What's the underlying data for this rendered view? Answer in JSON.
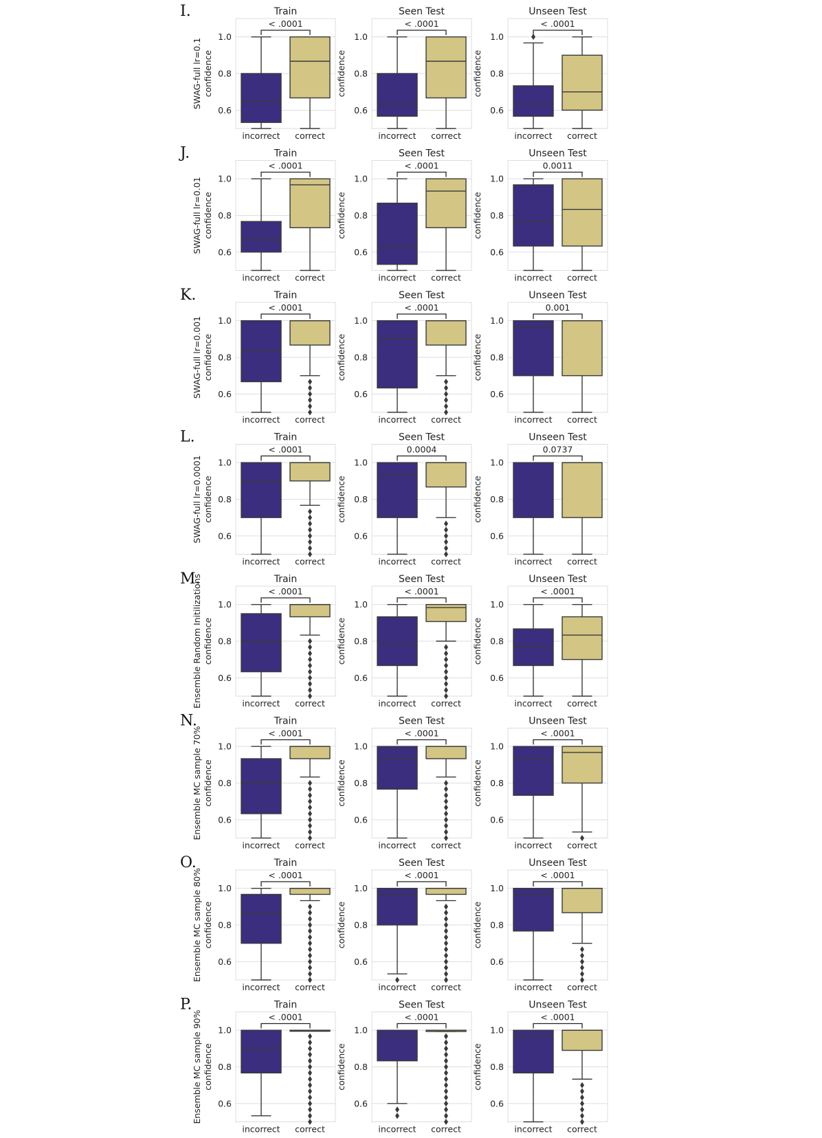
{
  "chart_data": {
    "type": "box",
    "columns": [
      "Train",
      "Seen Test",
      "Unseen Test"
    ],
    "categories": [
      "incorrect",
      "correct"
    ],
    "ylabel": "confidence",
    "yticks": [
      0.6,
      0.8,
      1.0
    ],
    "ylim": [
      0.5,
      1.1
    ],
    "grid": true,
    "colors": {
      "incorrect": "#3b2e7e",
      "correct": "#d3c584",
      "line": "#3a3a3a",
      "grid": "#dddddd"
    },
    "rows": [
      {
        "letter": "I.",
        "model": "SWAG-full lr=0.1",
        "panels": [
          {
            "title": "Train",
            "pvalue": "< .0001",
            "incorrect": {
              "whislo": 0.5,
              "q1": 0.533,
              "med": 0.65,
              "q3": 0.8,
              "whishi": 1.0,
              "fliers": []
            },
            "correct": {
              "whislo": 0.5,
              "q1": 0.667,
              "med": 0.867,
              "q3": 1.0,
              "whishi": 1.0,
              "fliers": []
            }
          },
          {
            "title": "Seen Test",
            "pvalue": "< .0001",
            "incorrect": {
              "whislo": 0.5,
              "q1": 0.567,
              "med": 0.633,
              "q3": 0.8,
              "whishi": 1.0,
              "fliers": []
            },
            "correct": {
              "whislo": 0.5,
              "q1": 0.667,
              "med": 0.867,
              "q3": 1.0,
              "whishi": 1.0,
              "fliers": []
            }
          },
          {
            "title": "Unseen Test",
            "pvalue": "< .0001",
            "incorrect": {
              "whislo": 0.5,
              "q1": 0.567,
              "med": 0.633,
              "q3": 0.733,
              "whishi": 0.967,
              "fliers": [
                1.0
              ]
            },
            "correct": {
              "whislo": 0.5,
              "q1": 0.6,
              "med": 0.7,
              "q3": 0.9,
              "whishi": 1.0,
              "fliers": []
            }
          }
        ]
      },
      {
        "letter": "J.",
        "model": "SWAG-full lr=0.01",
        "panels": [
          {
            "title": "Train",
            "pvalue": "< .0001",
            "incorrect": {
              "whislo": 0.5,
              "q1": 0.6,
              "med": 0.667,
              "q3": 0.767,
              "whishi": 1.0,
              "fliers": []
            },
            "correct": {
              "whislo": 0.5,
              "q1": 0.733,
              "med": 0.967,
              "q3": 1.0,
              "whishi": 1.0,
              "fliers": []
            }
          },
          {
            "title": "Seen Test",
            "pvalue": "< .0001",
            "incorrect": {
              "whislo": 0.5,
              "q1": 0.533,
              "med": 0.633,
              "q3": 0.867,
              "whishi": 1.0,
              "fliers": []
            },
            "correct": {
              "whislo": 0.5,
              "q1": 0.733,
              "med": 0.933,
              "q3": 1.0,
              "whishi": 1.0,
              "fliers": []
            }
          },
          {
            "title": "Unseen Test",
            "pvalue": "0.0011",
            "incorrect": {
              "whislo": 0.5,
              "q1": 0.633,
              "med": 0.767,
              "q3": 0.967,
              "whishi": 1.0,
              "fliers": []
            },
            "correct": {
              "whislo": 0.5,
              "q1": 0.633,
              "med": 0.833,
              "q3": 1.0,
              "whishi": 1.0,
              "fliers": []
            }
          }
        ]
      },
      {
        "letter": "K.",
        "model": "SWAG-full lr=0.001",
        "panels": [
          {
            "title": "Train",
            "pvalue": "< .0001",
            "incorrect": {
              "whislo": 0.5,
              "q1": 0.667,
              "med": 0.833,
              "q3": 1.0,
              "whishi": 1.0,
              "fliers": []
            },
            "correct": {
              "whislo": 0.7,
              "q1": 0.867,
              "med": 1.0,
              "q3": 1.0,
              "whishi": 1.0,
              "fliers": [
                0.667,
                0.633,
                0.6,
                0.567,
                0.533,
                0.5
              ]
            }
          },
          {
            "title": "Seen Test",
            "pvalue": "< .0001",
            "incorrect": {
              "whislo": 0.5,
              "q1": 0.633,
              "med": 0.9,
              "q3": 1.0,
              "whishi": 1.0,
              "fliers": []
            },
            "correct": {
              "whislo": 0.7,
              "q1": 0.867,
              "med": 1.0,
              "q3": 1.0,
              "whishi": 1.0,
              "fliers": [
                0.667,
                0.633,
                0.6,
                0.567,
                0.533,
                0.5
              ]
            }
          },
          {
            "title": "Unseen Test",
            "pvalue": "0.001",
            "incorrect": {
              "whislo": 0.5,
              "q1": 0.7,
              "med": 0.967,
              "q3": 1.0,
              "whishi": 1.0,
              "fliers": []
            },
            "correct": {
              "whislo": 0.5,
              "q1": 0.7,
              "med": 1.0,
              "q3": 1.0,
              "whishi": 1.0,
              "fliers": []
            }
          }
        ]
      },
      {
        "letter": "L.",
        "model": "SWAG-full lr=0.0001",
        "panels": [
          {
            "title": "Train",
            "pvalue": "< .0001",
            "incorrect": {
              "whislo": 0.5,
              "q1": 0.7,
              "med": 0.9,
              "q3": 1.0,
              "whishi": 1.0,
              "fliers": []
            },
            "correct": {
              "whislo": 0.767,
              "q1": 0.9,
              "med": 1.0,
              "q3": 1.0,
              "whishi": 1.0,
              "fliers": [
                0.733,
                0.7,
                0.667,
                0.633,
                0.6,
                0.567,
                0.533,
                0.5
              ]
            }
          },
          {
            "title": "Seen Test",
            "pvalue": "0.0004",
            "incorrect": {
              "whislo": 0.5,
              "q1": 0.7,
              "med": 0.933,
              "q3": 1.0,
              "whishi": 1.0,
              "fliers": []
            },
            "correct": {
              "whislo": 0.7,
              "q1": 0.867,
              "med": 1.0,
              "q3": 1.0,
              "whishi": 1.0,
              "fliers": [
                0.667,
                0.633,
                0.6,
                0.567,
                0.533,
                0.5
              ]
            }
          },
          {
            "title": "Unseen Test",
            "pvalue": "0.0737",
            "incorrect": {
              "whislo": 0.5,
              "q1": 0.7,
              "med": 1.0,
              "q3": 1.0,
              "whishi": 1.0,
              "fliers": []
            },
            "correct": {
              "whislo": 0.5,
              "q1": 0.7,
              "med": 1.0,
              "q3": 1.0,
              "whishi": 1.0,
              "fliers": []
            }
          }
        ]
      },
      {
        "letter": "M.",
        "model": "Ensemble Random Initilizations",
        "panels": [
          {
            "title": "Train",
            "pvalue": "< .0001",
            "incorrect": {
              "whislo": 0.5,
              "q1": 0.633,
              "med": 0.8,
              "q3": 0.95,
              "whishi": 1.0,
              "fliers": []
            },
            "correct": {
              "whislo": 0.833,
              "q1": 0.933,
              "med": 1.0,
              "q3": 1.0,
              "whishi": 1.0,
              "fliers": [
                0.8,
                0.767,
                0.733,
                0.7,
                0.667,
                0.633,
                0.6,
                0.567,
                0.533,
                0.5
              ]
            }
          },
          {
            "title": "Seen Test",
            "pvalue": "< .0001",
            "incorrect": {
              "whislo": 0.5,
              "q1": 0.667,
              "med": 0.783,
              "q3": 0.933,
              "whishi": 1.0,
              "fliers": []
            },
            "correct": {
              "whislo": 0.8,
              "q1": 0.907,
              "med": 0.983,
              "q3": 1.0,
              "whishi": 1.0,
              "fliers": [
                0.767,
                0.733,
                0.7,
                0.667,
                0.633,
                0.6,
                0.567,
                0.533,
                0.5
              ]
            }
          },
          {
            "title": "Unseen Test",
            "pvalue": "< .0001",
            "incorrect": {
              "whislo": 0.5,
              "q1": 0.667,
              "med": 0.767,
              "q3": 0.867,
              "whishi": 1.0,
              "fliers": []
            },
            "correct": {
              "whislo": 0.5,
              "q1": 0.7,
              "med": 0.833,
              "q3": 0.933,
              "whishi": 1.0,
              "fliers": []
            }
          }
        ]
      },
      {
        "letter": "N.",
        "model": "Ensemble MC sample 70%",
        "panels": [
          {
            "title": "Train",
            "pvalue": "< .0001",
            "incorrect": {
              "whislo": 0.5,
              "q1": 0.633,
              "med": 0.8,
              "q3": 0.933,
              "whishi": 1.0,
              "fliers": []
            },
            "correct": {
              "whislo": 0.833,
              "q1": 0.933,
              "med": 1.0,
              "q3": 1.0,
              "whishi": 1.0,
              "fliers": [
                0.8,
                0.767,
                0.733,
                0.7,
                0.667,
                0.633,
                0.6,
                0.567,
                0.533,
                0.5
              ]
            }
          },
          {
            "title": "Seen Test",
            "pvalue": "< .0001",
            "incorrect": {
              "whislo": 0.5,
              "q1": 0.767,
              "med": 0.933,
              "q3": 1.0,
              "whishi": 1.0,
              "fliers": []
            },
            "correct": {
              "whislo": 0.833,
              "q1": 0.933,
              "med": 1.0,
              "q3": 1.0,
              "whishi": 1.0,
              "fliers": [
                0.8,
                0.767,
                0.733,
                0.7,
                0.667,
                0.633,
                0.6,
                0.567,
                0.533,
                0.5
              ]
            }
          },
          {
            "title": "Unseen Test",
            "pvalue": "< .0001",
            "incorrect": {
              "whislo": 0.5,
              "q1": 0.733,
              "med": 0.933,
              "q3": 1.0,
              "whishi": 1.0,
              "fliers": []
            },
            "correct": {
              "whislo": 0.533,
              "q1": 0.8,
              "med": 0.967,
              "q3": 1.0,
              "whishi": 1.0,
              "fliers": [
                0.5
              ]
            }
          }
        ]
      },
      {
        "letter": "O.",
        "model": "Ensemble MC sample 80%",
        "panels": [
          {
            "title": "Train",
            "pvalue": "< .0001",
            "incorrect": {
              "whislo": 0.5,
              "q1": 0.7,
              "med": 0.867,
              "q3": 0.967,
              "whishi": 1.0,
              "fliers": []
            },
            "correct": {
              "whislo": 0.933,
              "q1": 0.967,
              "med": 1.0,
              "q3": 1.0,
              "whishi": 1.0,
              "fliers": [
                0.9,
                0.867,
                0.833,
                0.8,
                0.767,
                0.733,
                0.7,
                0.667,
                0.633,
                0.6,
                0.567,
                0.533,
                0.5
              ]
            }
          },
          {
            "title": "Seen Test",
            "pvalue": "< .0001",
            "incorrect": {
              "whislo": 0.533,
              "q1": 0.8,
              "med": 0.967,
              "q3": 1.0,
              "whishi": 1.0,
              "fliers": [
                0.5
              ]
            },
            "correct": {
              "whislo": 0.933,
              "q1": 0.967,
              "med": 1.0,
              "q3": 1.0,
              "whishi": 1.0,
              "fliers": [
                0.9,
                0.867,
                0.833,
                0.8,
                0.767,
                0.733,
                0.7,
                0.667,
                0.633,
                0.6,
                0.567,
                0.533,
                0.5
              ]
            }
          },
          {
            "title": "Unseen Test",
            "pvalue": "< .0001",
            "incorrect": {
              "whislo": 0.5,
              "q1": 0.767,
              "med": 0.967,
              "q3": 1.0,
              "whishi": 1.0,
              "fliers": []
            },
            "correct": {
              "whislo": 0.7,
              "q1": 0.867,
              "med": 1.0,
              "q3": 1.0,
              "whishi": 1.0,
              "fliers": [
                0.667,
                0.633,
                0.6,
                0.567,
                0.533,
                0.5
              ]
            }
          }
        ]
      },
      {
        "letter": "P.",
        "model": "Ensemble MC sample 90%",
        "panels": [
          {
            "title": "Train",
            "pvalue": "< .0001",
            "incorrect": {
              "whislo": 0.533,
              "q1": 0.767,
              "med": 0.9,
              "q3": 1.0,
              "whishi": 1.0,
              "fliers": []
            },
            "correct": {
              "whislo": 1.0,
              "q1": 1.0,
              "med": 1.0,
              "q3": 1.0,
              "whishi": 1.0,
              "fliers": [
                0.967,
                0.933,
                0.9,
                0.867,
                0.833,
                0.8,
                0.767,
                0.733,
                0.7,
                0.667,
                0.633,
                0.6,
                0.567,
                0.533,
                0.5
              ]
            }
          },
          {
            "title": "Seen Test",
            "pvalue": "< .0001",
            "incorrect": {
              "whislo": 0.6,
              "q1": 0.833,
              "med": 0.967,
              "q3": 1.0,
              "whishi": 1.0,
              "fliers": [
                0.567,
                0.533
              ]
            },
            "correct": {
              "whislo": 0.993,
              "q1": 0.993,
              "med": 1.0,
              "q3": 1.0,
              "whishi": 1.0,
              "fliers": [
                0.967,
                0.933,
                0.9,
                0.867,
                0.833,
                0.8,
                0.767,
                0.733,
                0.7,
                0.667,
                0.633,
                0.6,
                0.567,
                0.533,
                0.5
              ]
            }
          },
          {
            "title": "Unseen Test",
            "pvalue": "< .0001",
            "incorrect": {
              "whislo": 0.5,
              "q1": 0.767,
              "med": 0.967,
              "q3": 1.0,
              "whishi": 1.0,
              "fliers": []
            },
            "correct": {
              "whislo": 0.733,
              "q1": 0.89,
              "med": 1.0,
              "q3": 1.0,
              "whishi": 1.0,
              "fliers": [
                0.7,
                0.667,
                0.633,
                0.6,
                0.567,
                0.533,
                0.5
              ]
            }
          }
        ]
      }
    ]
  }
}
